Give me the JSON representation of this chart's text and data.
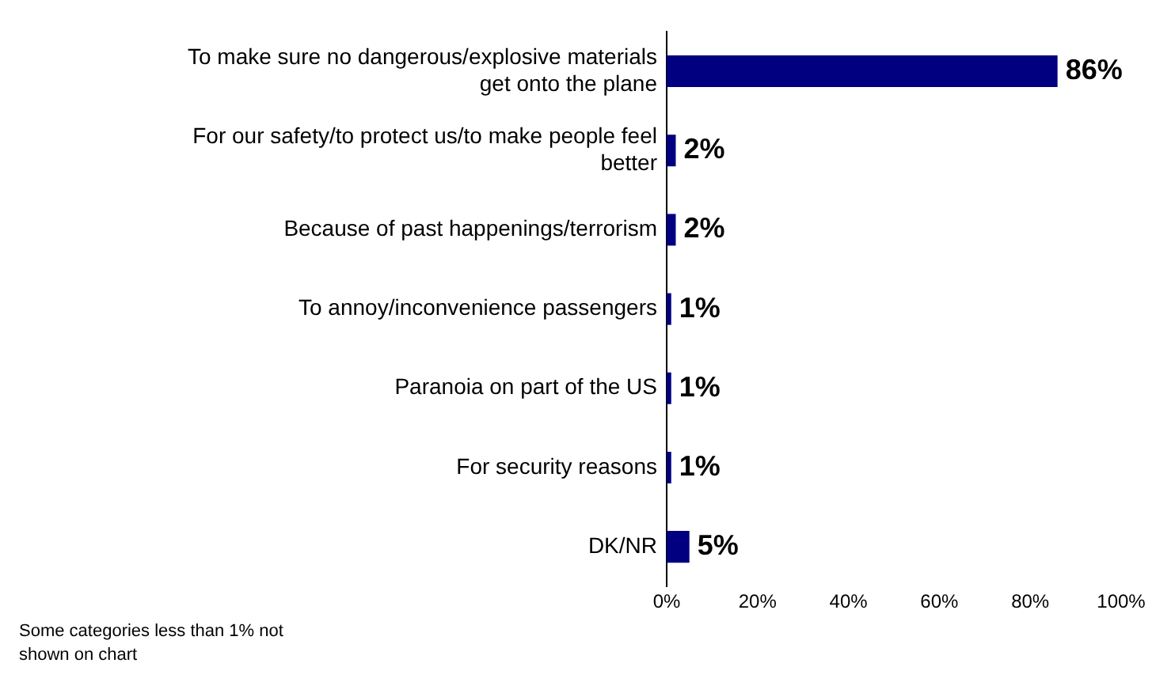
{
  "chart_data": {
    "type": "bar",
    "orientation": "horizontal",
    "categories": [
      "To make sure no dangerous/explosive materials get onto the plane",
      "For our safety/to protect us/to make people feel better",
      "Because of past happenings/terrorism",
      "To annoy/inconvenience passengers",
      "Paranoia on part of the US",
      "For security reasons",
      "DK/NR"
    ],
    "values": [
      86,
      2,
      2,
      1,
      1,
      1,
      5
    ],
    "value_labels": [
      "86%",
      "2%",
      "2%",
      "1%",
      "1%",
      "1%",
      "5%"
    ],
    "color": "#000080",
    "xlim": [
      0,
      100
    ],
    "xticks": [
      {
        "value": 0,
        "label": "0%"
      },
      {
        "value": 20,
        "label": "20%"
      },
      {
        "value": 40,
        "label": "40%"
      },
      {
        "value": 60,
        "label": "60%"
      },
      {
        "value": 80,
        "label": "80%"
      },
      {
        "value": 100,
        "label": "100%"
      }
    ],
    "annotations": [
      "Some categories less than 1% not shown on chart"
    ]
  }
}
